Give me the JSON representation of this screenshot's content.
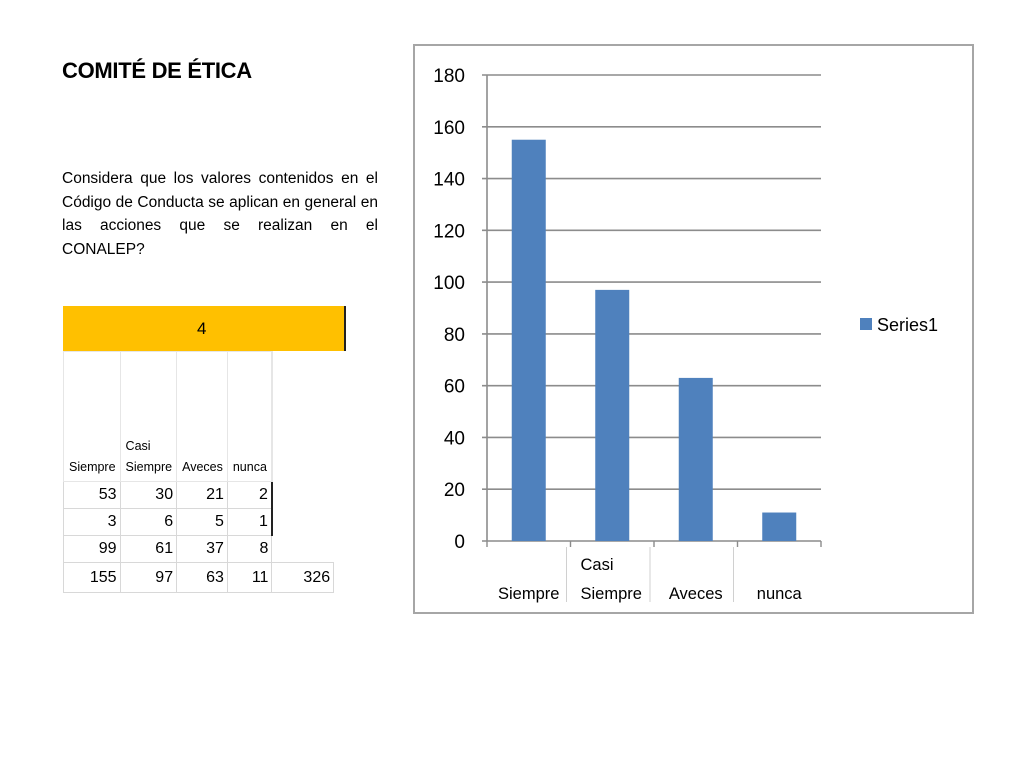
{
  "slide": {
    "title": "COMITÉ DE ÉTICA",
    "question": "Considera que los valores contenidos en el Código de Conducta se aplican en general en las acciones que se realizan en el CONALEP?"
  },
  "table": {
    "header": "4",
    "columns": [
      [
        "Siempre"
      ],
      [
        "Casi",
        "Siempre"
      ],
      [
        "Aveces"
      ],
      [
        "nunca"
      ]
    ],
    "rows": [
      [
        "53",
        "30",
        "21",
        "2"
      ],
      [
        "3",
        "6",
        "5",
        "1"
      ],
      [
        "99",
        "61",
        "37",
        "8"
      ],
      [
        "155",
        "97",
        "63",
        "11"
      ]
    ],
    "grand_total": "326"
  },
  "chart_data": {
    "type": "bar",
    "categories": [
      "Siempre",
      "Casi Siempre",
      "Aveces",
      "nunca"
    ],
    "category_label_lines": [
      [
        "Siempre"
      ],
      [
        "Casi",
        "Siempre"
      ],
      [
        "Aveces"
      ],
      [
        "nunca"
      ]
    ],
    "series": [
      {
        "name": "Series1",
        "values": [
          155,
          97,
          63,
          11
        ],
        "color": "#4f81bd"
      }
    ],
    "ylim": [
      0,
      180
    ],
    "yticks": [
      "0",
      "20",
      "40",
      "60",
      "80",
      "100",
      "120",
      "140",
      "160",
      "180"
    ],
    "grid": true,
    "legend": "right",
    "title": "",
    "xlabel": "",
    "ylabel": ""
  }
}
